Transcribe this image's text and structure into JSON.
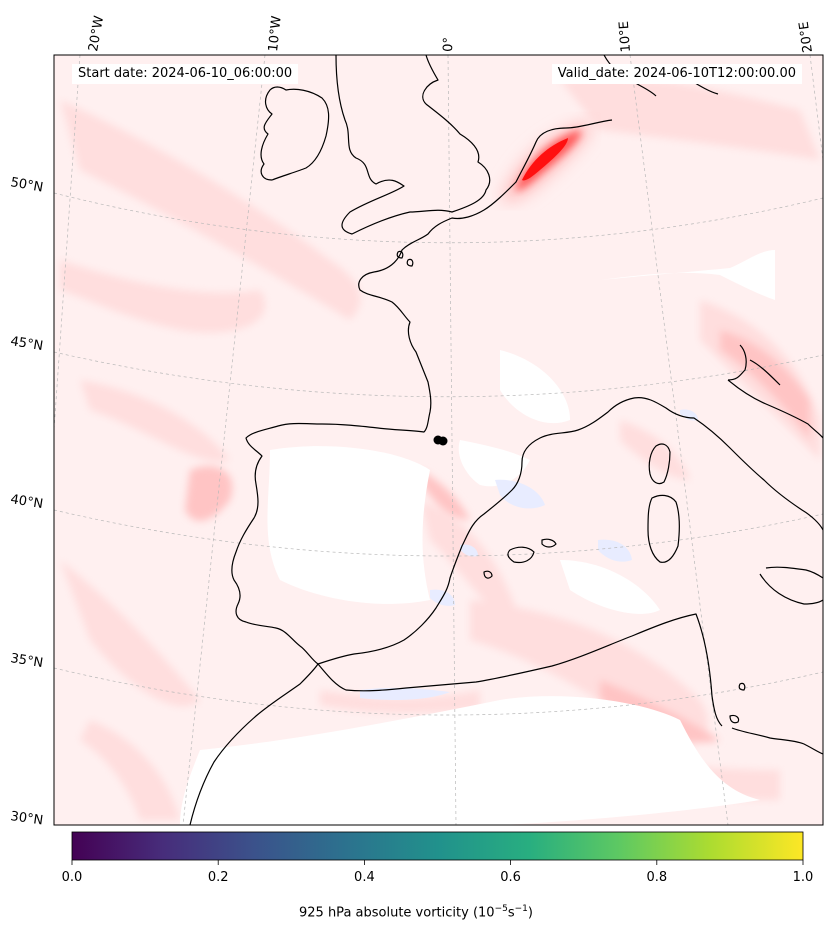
{
  "annotations": {
    "start_date": "Start date: 2024-06-10_06:00:00",
    "valid_date": "Valid_date: 2024-06-10T12:00:00.00"
  },
  "map": {
    "projection": "Lambert conformal",
    "field": "925 hPa absolute vorticity",
    "fill_colors": [
      "#fff0f0",
      "#ffdede",
      "#ffc4c4",
      "#ff9f9f",
      "#ff5a5a",
      "#ff1010"
    ],
    "negative_color": "#e8ecff",
    "coastline_color": "#000000",
    "gridline_color": "#b8b8b8"
  },
  "lon_labels": [
    "20°W",
    "10°W",
    "0°",
    "10°E",
    "20°E"
  ],
  "lat_labels": [
    "50°N",
    "45°N",
    "40°N",
    "35°N",
    "30°N"
  ],
  "colorbar": {
    "colormap": "viridis",
    "range": [
      0.0,
      1.0
    ],
    "ticks": [
      "0.0",
      "0.2",
      "0.4",
      "0.6",
      "0.8",
      "1.0"
    ],
    "label_main": "925 hPa absolute vorticity (10",
    "label_exp1": "−5",
    "label_mid": "s",
    "label_exp2": "−1",
    "label_end": ")"
  }
}
